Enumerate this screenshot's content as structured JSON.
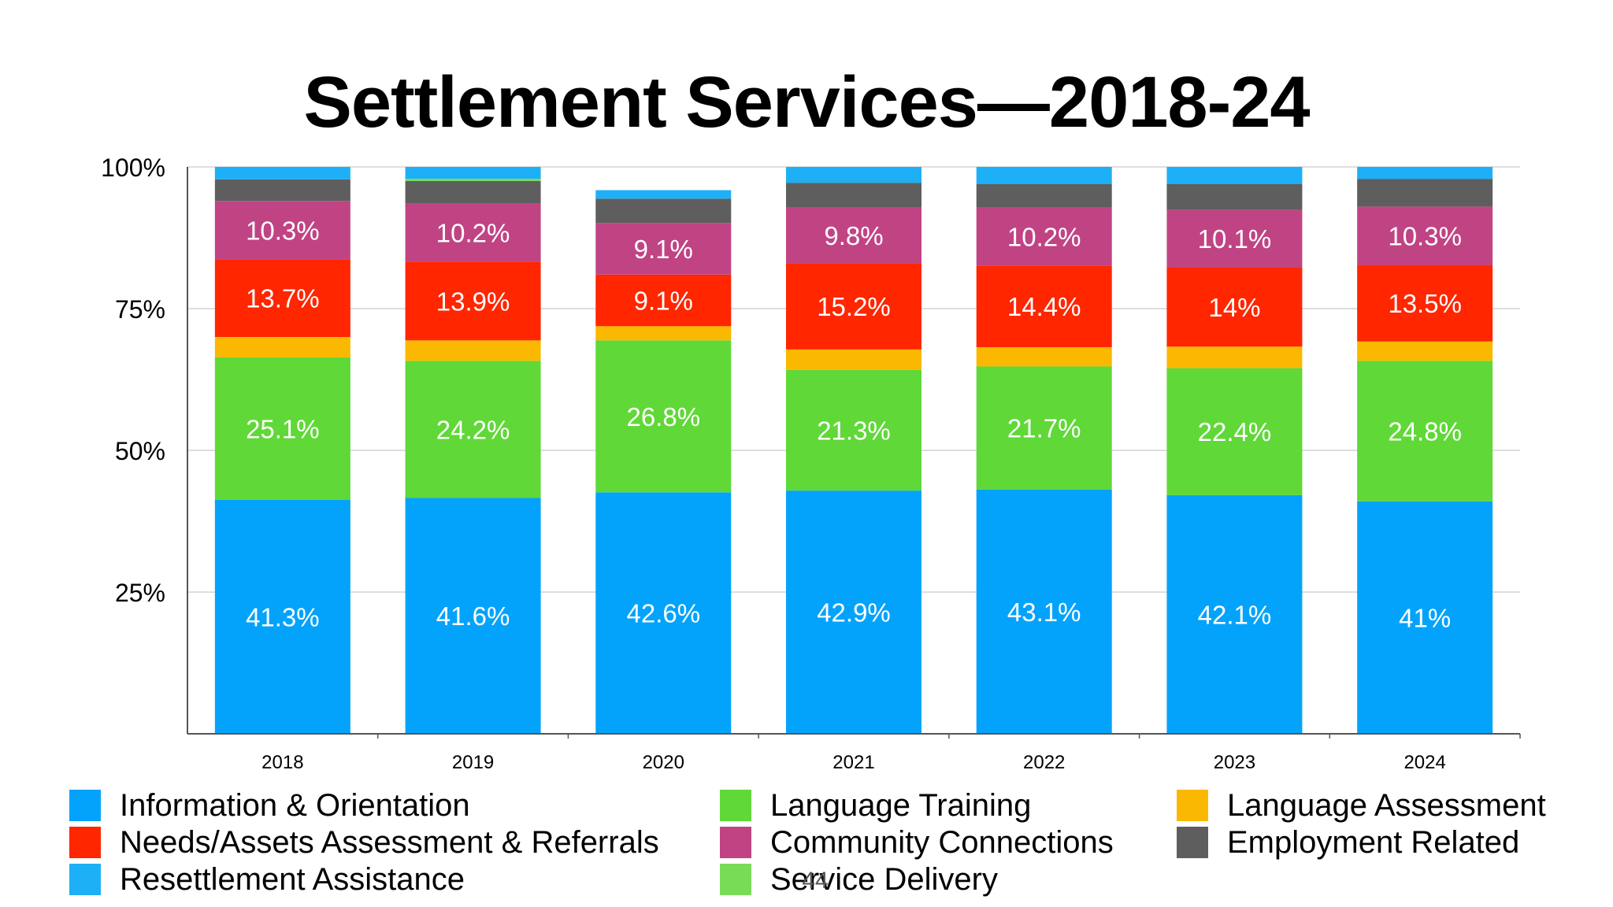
{
  "title": "Settlement Services—2018-24",
  "page_number": "44",
  "chart_data": {
    "type": "bar",
    "stacked": true,
    "categories": [
      "2018",
      "2019",
      "2020",
      "2021",
      "2022",
      "2023",
      "2024"
    ],
    "ylim": [
      0,
      100
    ],
    "yticks": [
      {
        "value": 25,
        "label": "25%"
      },
      {
        "value": 50,
        "label": "50%"
      },
      {
        "value": 75,
        "label": "75%"
      },
      {
        "value": 100,
        "label": "100%"
      }
    ],
    "grid": true,
    "legend_position": "bottom",
    "series": [
      {
        "name": "Information & Orientation",
        "color": "#04A3FB",
        "values": [
          41.3,
          41.6,
          42.6,
          42.9,
          43.1,
          42.1,
          41.0
        ],
        "labels": [
          "41.3%",
          "41.6%",
          "42.6%",
          "42.9%",
          "43.1%",
          "42.1%",
          "41%"
        ]
      },
      {
        "name": "Language Training",
        "color": "#60D838",
        "values": [
          25.1,
          24.2,
          26.8,
          21.3,
          21.7,
          22.4,
          24.8
        ],
        "labels": [
          "25.1%",
          "24.2%",
          "26.8%",
          "21.3%",
          "21.7%",
          "22.4%",
          "24.8%"
        ]
      },
      {
        "name": "Language Assessment",
        "color": "#FBB800",
        "values": [
          3.6,
          3.6,
          2.5,
          3.6,
          3.4,
          3.8,
          3.4
        ],
        "labels": [
          "",
          "",
          "",
          "",
          "",
          "",
          ""
        ]
      },
      {
        "name": "Needs/Assets Assessment & Referrals",
        "color": "#FF2600",
        "values": [
          13.7,
          13.9,
          9.1,
          15.2,
          14.4,
          14.0,
          13.5
        ],
        "labels": [
          "13.7%",
          "13.9%",
          "9.1%",
          "15.2%",
          "14.4%",
          "14%",
          "13.5%"
        ]
      },
      {
        "name": "Community Connections",
        "color": "#C04484",
        "values": [
          10.3,
          10.2,
          9.1,
          9.8,
          10.2,
          10.1,
          10.3
        ],
        "labels": [
          "10.3%",
          "10.2%",
          "9.1%",
          "9.8%",
          "10.2%",
          "10.1%",
          "10.3%"
        ]
      },
      {
        "name": "Employment Related",
        "color": "#5E5E5E",
        "values": [
          3.8,
          4.0,
          4.3,
          4.4,
          4.2,
          4.6,
          4.9
        ],
        "labels": [
          "",
          "",
          "",
          "",
          "",
          "",
          ""
        ]
      },
      {
        "name": "Service Delivery",
        "color": "#7ADB58",
        "values": [
          0,
          0.4,
          0,
          0,
          0,
          0,
          0
        ],
        "labels": [
          "",
          "",
          "",
          "",
          "",
          "",
          ""
        ]
      },
      {
        "name": "Resettlement Assistance",
        "color": "#1EB0F7",
        "values": [
          2.2,
          2.1,
          1.5,
          2.8,
          3.0,
          3.0,
          2.1
        ],
        "labels": [
          "",
          "",
          "",
          "",
          "",
          "",
          ""
        ]
      }
    ]
  },
  "legend": [
    {
      "label": "Information & Orientation",
      "color": "#04A3FB"
    },
    {
      "label": "Needs/Assets Assessment & Referrals",
      "color": "#FF2600"
    },
    {
      "label": "Resettlement Assistance",
      "color": "#1EB0F7"
    },
    {
      "label": "Language Training",
      "color": "#60D838"
    },
    {
      "label": "Community Connections",
      "color": "#C04484"
    },
    {
      "label": "Service Delivery",
      "color": "#7ADB58"
    },
    {
      "label": "Language Assessment",
      "color": "#FBB800"
    },
    {
      "label": "Employment Related",
      "color": "#5E5E5E"
    }
  ]
}
